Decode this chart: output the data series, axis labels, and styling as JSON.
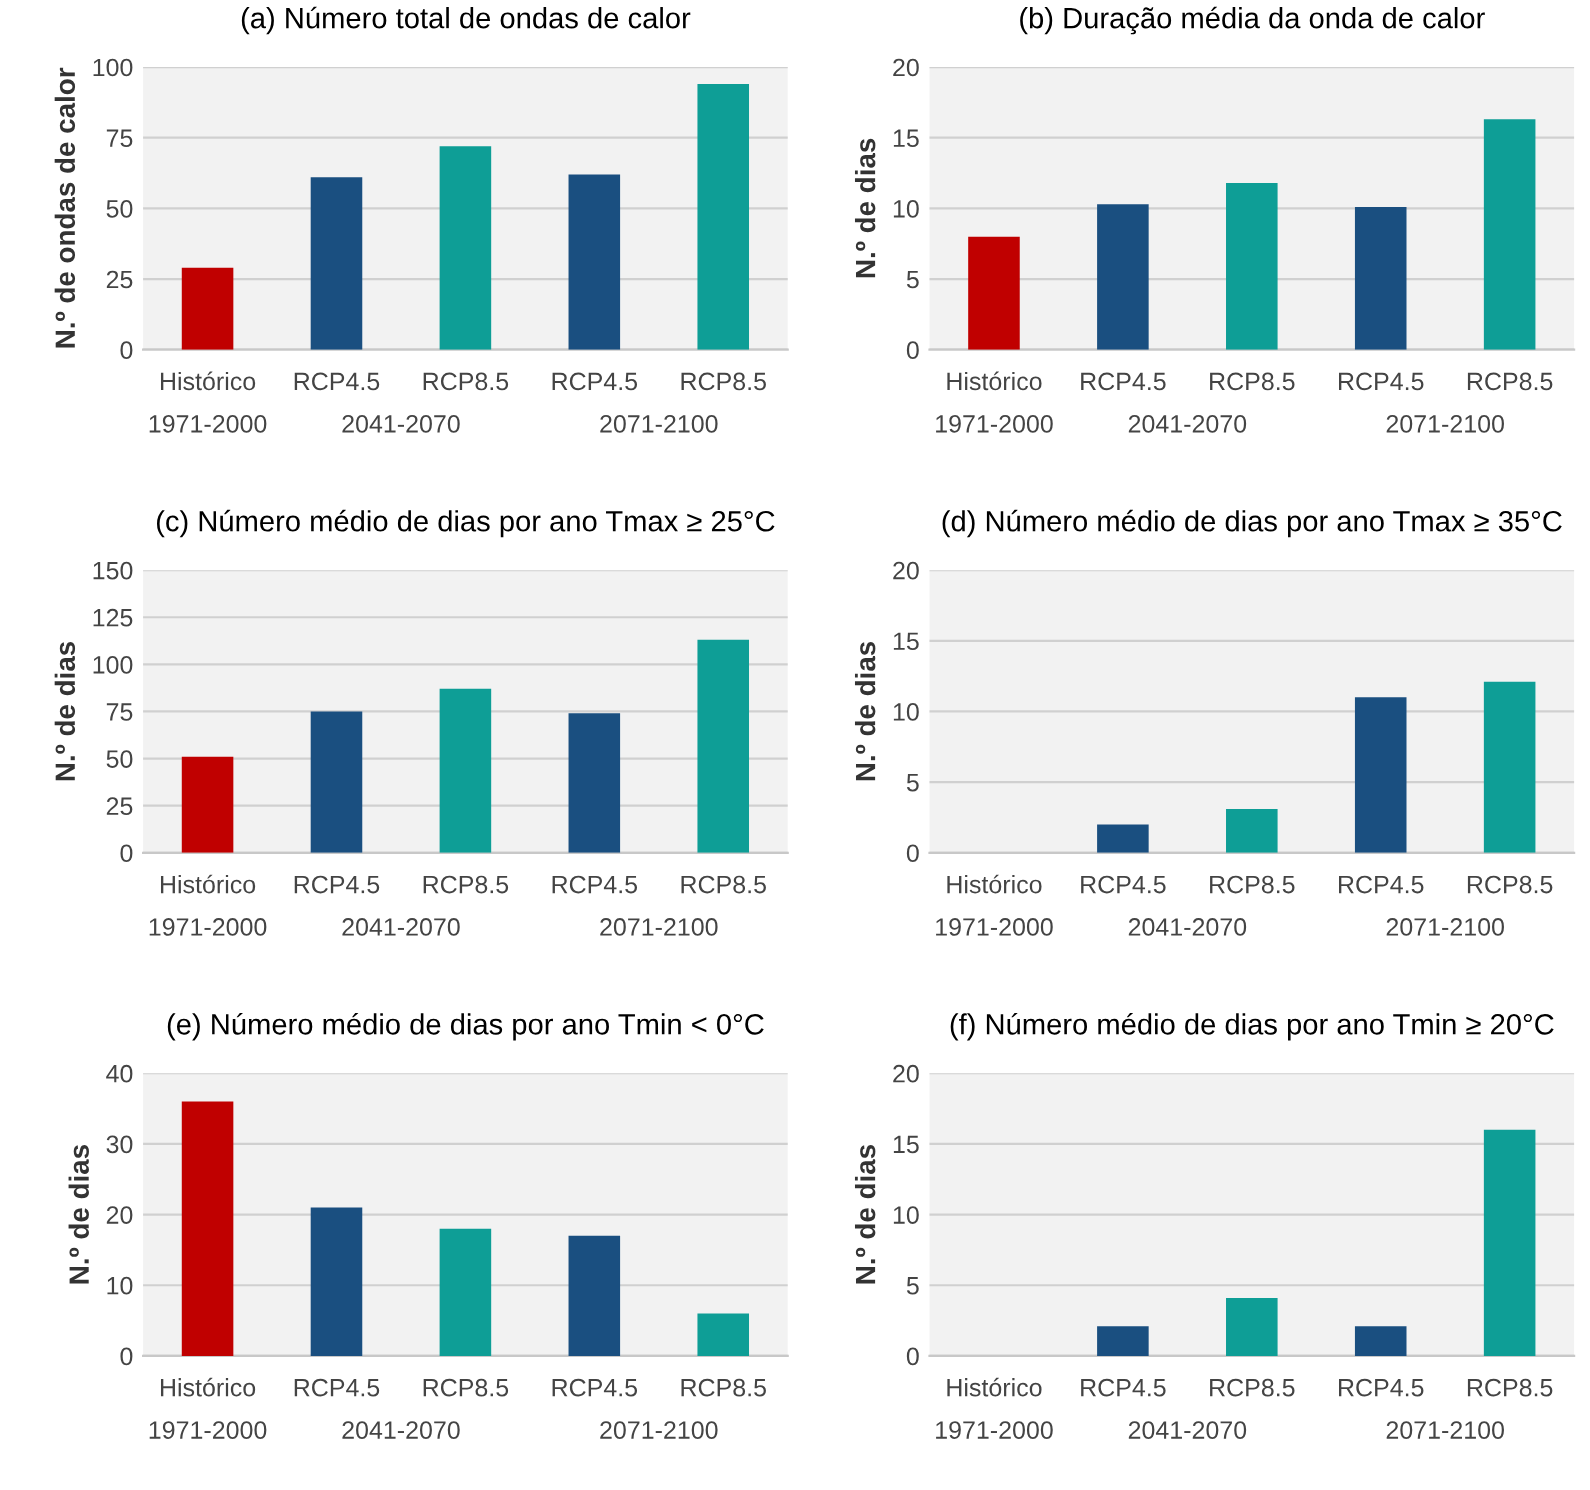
{
  "chart_data": [
    {
      "type": "bar",
      "title": "(a) Número total de ondas de calor",
      "ylabel": "N.º de ondas de calor",
      "categories": [
        "Histórico",
        "RCP4.5",
        "RCP8.5",
        "RCP4.5",
        "RCP8.5"
      ],
      "values": [
        29,
        61,
        72,
        62,
        94
      ],
      "colors": [
        "#c00000",
        "#1a4f80",
        "#0e9e96",
        "#1a4f80",
        "#0e9e96"
      ],
      "ylim": [
        0,
        100
      ],
      "yticks": [
        0,
        25,
        50,
        75,
        100
      ],
      "grid": "y",
      "annotations": [
        "1971-2000",
        "2041-2070",
        "2071-2100"
      ]
    },
    {
      "type": "bar",
      "title": "(b) Duração média da onda de calor",
      "ylabel": "N.º de dias",
      "categories": [
        "Histórico",
        "RCP4.5",
        "RCP8.5",
        "RCP4.5",
        "RCP8.5"
      ],
      "values": [
        8,
        10.3,
        11.8,
        10.1,
        16.3
      ],
      "colors": [
        "#c00000",
        "#1a4f80",
        "#0e9e96",
        "#1a4f80",
        "#0e9e96"
      ],
      "ylim": [
        0,
        20
      ],
      "yticks": [
        0,
        5,
        10,
        15,
        20
      ],
      "grid": "y",
      "annotations": [
        "1971-2000",
        "2041-2070",
        "2071-2100"
      ]
    },
    {
      "type": "bar",
      "title": "(c) Número médio de dias por ano Tmax ≥ 25°C",
      "ylabel": "N.º de dias",
      "categories": [
        "Histórico",
        "RCP4.5",
        "RCP8.5",
        "RCP4.5",
        "RCP8.5"
      ],
      "values": [
        51,
        75,
        87,
        74,
        113
      ],
      "colors": [
        "#c00000",
        "#1a4f80",
        "#0e9e96",
        "#1a4f80",
        "#0e9e96"
      ],
      "ylim": [
        0,
        150
      ],
      "yticks": [
        0,
        25,
        50,
        75,
        100,
        125,
        150
      ],
      "grid": "y",
      "annotations": [
        "1971-2000",
        "2041-2070",
        "2071-2100"
      ]
    },
    {
      "type": "bar",
      "title": "(d) Número médio de dias por ano Tmax ≥ 35°C",
      "ylabel": "N.º de dias",
      "categories": [
        "Histórico",
        "RCP4.5",
        "RCP8.5",
        "RCP4.5",
        "RCP8.5"
      ],
      "values": [
        0,
        2,
        3.1,
        11,
        12.1
      ],
      "colors": [
        "#c00000",
        "#1a4f80",
        "#0e9e96",
        "#1a4f80",
        "#0e9e96"
      ],
      "ylim": [
        0,
        20
      ],
      "yticks": [
        0,
        5,
        10,
        15,
        20
      ],
      "grid": "y",
      "annotations": [
        "1971-2000",
        "2041-2070",
        "2071-2100"
      ]
    },
    {
      "type": "bar",
      "title": "(e) Número médio de dias por ano Tmin < 0°C",
      "ylabel": "N.º de dias",
      "categories": [
        "Histórico",
        "RCP4.5",
        "RCP8.5",
        "RCP4.5",
        "RCP8.5"
      ],
      "values": [
        36,
        21,
        18,
        17,
        6
      ],
      "colors": [
        "#c00000",
        "#1a4f80",
        "#0e9e96",
        "#1a4f80",
        "#0e9e96"
      ],
      "ylim": [
        0,
        40
      ],
      "yticks": [
        0,
        10,
        20,
        30,
        40
      ],
      "grid": "y",
      "annotations": [
        "1971-2000",
        "2041-2070",
        "2071-2100"
      ]
    },
    {
      "type": "bar",
      "title": "(f) Número médio de dias por ano Tmin ≥ 20°C",
      "ylabel": "N.º de dias",
      "categories": [
        "Histórico",
        "RCP4.5",
        "RCP8.5",
        "RCP4.5",
        "RCP8.5"
      ],
      "values": [
        0,
        2.1,
        4.1,
        2.1,
        16
      ],
      "colors": [
        "#c00000",
        "#1a4f80",
        "#0e9e96",
        "#1a4f80",
        "#0e9e96"
      ],
      "ylim": [
        0,
        20
      ],
      "yticks": [
        0,
        5,
        10,
        15,
        20
      ],
      "grid": "y",
      "annotations": [
        "1971-2000",
        "2041-2070",
        "2071-2100"
      ]
    }
  ]
}
